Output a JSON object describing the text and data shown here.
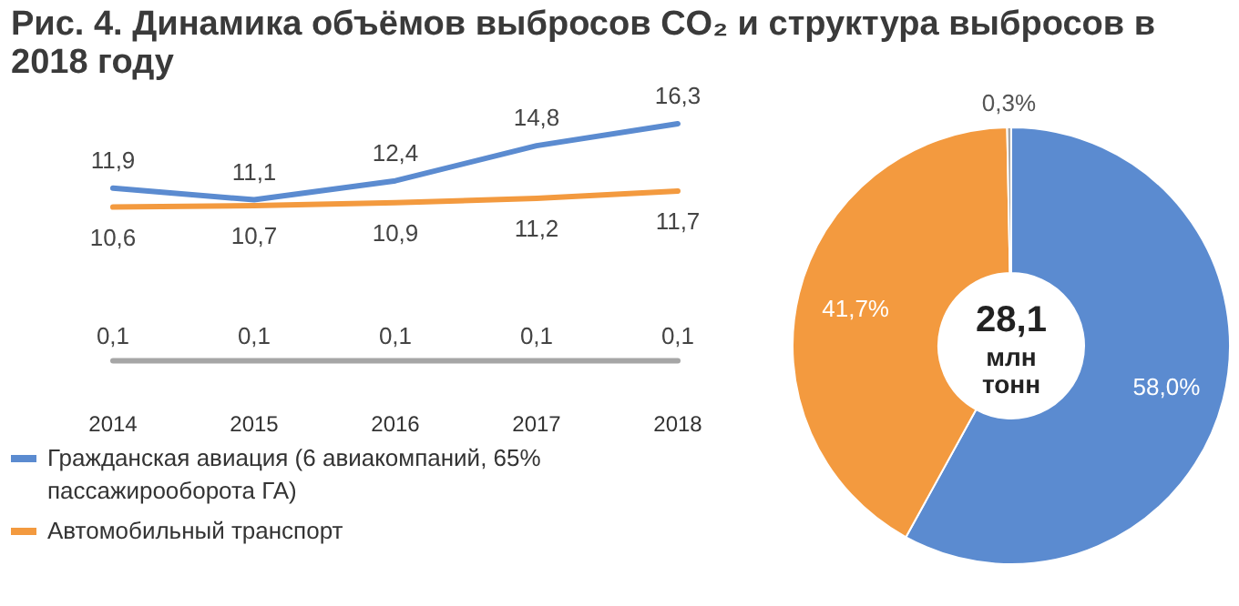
{
  "chart_data": [
    {
      "type": "line",
      "title": "Рис. 4. Динамика объёмов выбросов CO₂ и структура выбросов в 2018 году",
      "categories": [
        "2014",
        "2015",
        "2016",
        "2017",
        "2018"
      ],
      "relative": false,
      "legend": "bottom",
      "series": [
        {
          "name": "Гражданская авиация (6 авиакомпаний, 65% пассажирооборота ГА)",
          "color": "#5b8bd0",
          "values": [
            11.9,
            11.1,
            12.4,
            14.8,
            16.3
          ],
          "value_labels": [
            "11,9",
            "11,1",
            "12,4",
            "14,8",
            "16,3"
          ]
        },
        {
          "name": "Автомобильный транспорт",
          "color": "#f39a3f",
          "values": [
            10.6,
            10.7,
            10.9,
            11.2,
            11.7
          ],
          "value_labels": [
            "10,6",
            "10,7",
            "10,9",
            "11,2",
            "11,7"
          ]
        },
        {
          "color": "#a6a6a6",
          "values": [
            0.1,
            0.1,
            0.1,
            0.1,
            0.1
          ],
          "value_labels": [
            "0,1",
            "0,1",
            "0,1",
            "0,1",
            "0,1"
          ]
        }
      ]
    },
    {
      "type": "donut",
      "categories": [
        null,
        null,
        null
      ],
      "values": [
        58.0,
        41.7,
        0.3
      ],
      "colors": [
        "#5b8bd0",
        "#f39a3f",
        "#a6a6a6"
      ],
      "value_labels": [
        "58,0%",
        "41,7%",
        "0,3%"
      ],
      "annotations": [
        "28,1 млн тонн"
      ]
    }
  ]
}
